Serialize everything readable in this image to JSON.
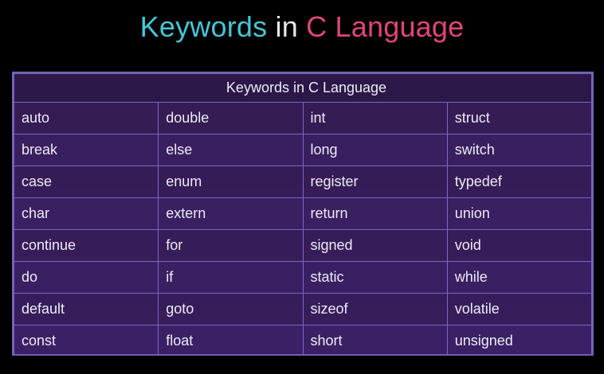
{
  "title": {
    "part1": "Keywords",
    "part2": "in",
    "part3": "C Language",
    "colors": {
      "part1": "#44c6d6",
      "part2": "#e8e8e8",
      "part3": "#e0457a"
    }
  },
  "table": {
    "header": "Keywords in C Language",
    "rows": [
      [
        "auto",
        "double",
        "int",
        "struct"
      ],
      [
        "break",
        "else",
        "long",
        "switch"
      ],
      [
        "case",
        "enum",
        "register",
        "typedef"
      ],
      [
        "char",
        "extern",
        "return",
        "union"
      ],
      [
        "continue",
        "for",
        "signed",
        "void"
      ],
      [
        "do",
        "if",
        "static",
        "while"
      ],
      [
        "default",
        "goto",
        "sizeof",
        "volatile"
      ],
      [
        "const",
        "float",
        "short",
        "unsigned"
      ]
    ]
  }
}
